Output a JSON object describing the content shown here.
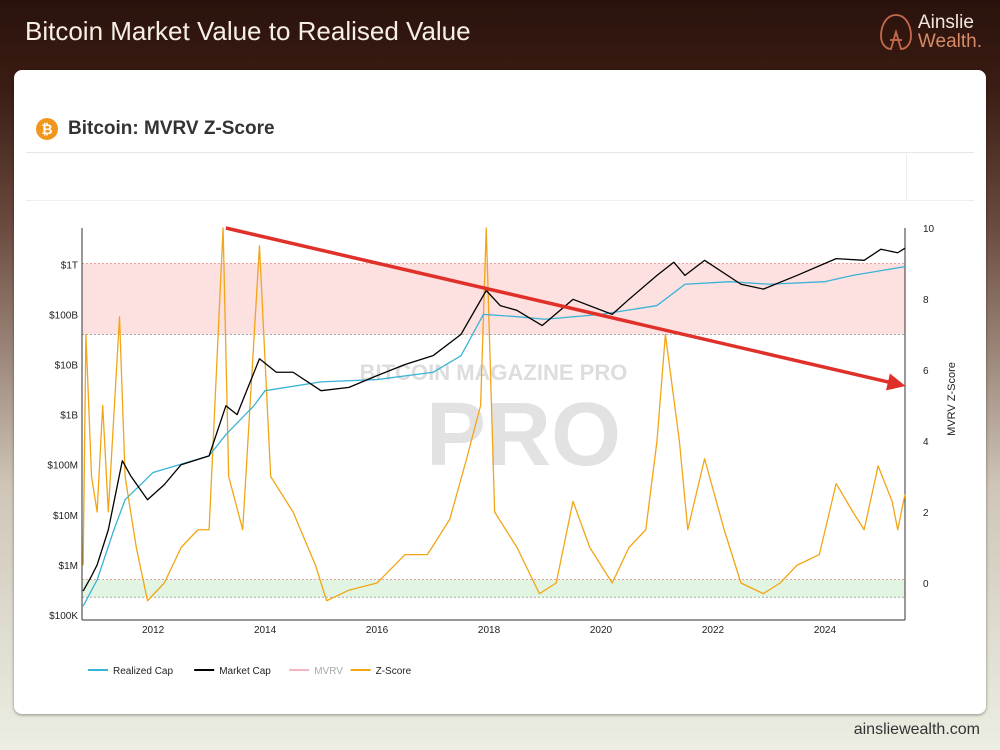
{
  "header": {
    "title": "Bitcoin Market Value to Realised Value",
    "logo_line1": "Ainslie",
    "logo_line2": "Wealth."
  },
  "card": {
    "title": "Bitcoin: MVRV Z-Score",
    "icon": "bitcoin-icon"
  },
  "footer": {
    "url": "ainsliewealth.com"
  },
  "watermark": "BITCOIN MAGAZINE PRO",
  "colors": {
    "realized": "#3ab3d6",
    "market": "#000000",
    "mvrv": "#f2b6c0",
    "zscore": "#f2a516",
    "arrow": "#e0302a",
    "red_band": "#fde0e0",
    "green_band": "#e2f5e2"
  },
  "chart_data": {
    "type": "line",
    "title": "Bitcoin: MVRV Z-Score",
    "xlim": [
      2010.73,
      2025.43
    ],
    "x_ticks": [
      "2012",
      "2014",
      "2016",
      "2018",
      "2020",
      "2022",
      "2024"
    ],
    "y_left": {
      "scale": "log",
      "lim": [
        100000,
        10000000000000
      ],
      "tick_values": [
        100000,
        1000000,
        10000000,
        100000000,
        1000000000,
        10000000000,
        100000000000,
        1000000000000
      ],
      "tick_labels": [
        "$100K",
        "$1M",
        "$10M",
        "$100M",
        "$1B",
        "$10B",
        "$100B",
        "$1T"
      ]
    },
    "y_right": {
      "label": "MVRV Z-Score",
      "lim": [
        -0.9,
        10
      ],
      "ticks": [
        "0",
        "2",
        "4",
        "6",
        "8",
        "10"
      ]
    },
    "bands": [
      {
        "zone": "red",
        "z_range": [
          7,
          9
        ]
      },
      {
        "zone": "green",
        "z_range": [
          -0.4,
          0.1
        ]
      }
    ],
    "annotation_arrow": {
      "from": [
        2013.3,
        10
      ],
      "to": [
        2025.3,
        5.6
      ]
    },
    "legend": {
      "placement": "bottom-left",
      "entries": [
        "Realized Cap",
        "Market Cap",
        "MVRV",
        "Z-Score"
      ]
    },
    "series": [
      {
        "name": "Realized Cap",
        "axis": "left",
        "points": [
          [
            2010.75,
            150000
          ],
          [
            2011.0,
            500000
          ],
          [
            2011.3,
            5000000
          ],
          [
            2011.5,
            20000000
          ],
          [
            2012.0,
            70000000
          ],
          [
            2013.0,
            150000000
          ],
          [
            2013.3,
            400000000
          ],
          [
            2013.8,
            1500000000
          ],
          [
            2014.0,
            3000000000
          ],
          [
            2015.0,
            4500000000
          ],
          [
            2016.0,
            5000000000
          ],
          [
            2017.0,
            7000000000
          ],
          [
            2017.5,
            15000000000
          ],
          [
            2017.9,
            100000000000
          ],
          [
            2018.5,
            90000000000
          ],
          [
            2019.0,
            80000000000
          ],
          [
            2020.0,
            100000000000
          ],
          [
            2021.0,
            150000000000
          ],
          [
            2021.5,
            400000000000
          ],
          [
            2022.3,
            450000000000
          ],
          [
            2023.0,
            400000000000
          ],
          [
            2024.0,
            450000000000
          ],
          [
            2024.5,
            600000000000
          ],
          [
            2025.43,
            900000000000
          ]
        ]
      },
      {
        "name": "Market Cap",
        "axis": "left",
        "points": [
          [
            2010.75,
            300000
          ],
          [
            2010.9,
            600000
          ],
          [
            2011.0,
            1000000
          ],
          [
            2011.2,
            5000000
          ],
          [
            2011.45,
            120000000
          ],
          [
            2011.6,
            60000000
          ],
          [
            2011.9,
            20000000
          ],
          [
            2012.2,
            40000000
          ],
          [
            2012.5,
            100000000
          ],
          [
            2013.0,
            150000000
          ],
          [
            2013.3,
            1500000000
          ],
          [
            2013.5,
            1000000000
          ],
          [
            2013.9,
            13000000000
          ],
          [
            2014.2,
            7000000000
          ],
          [
            2014.5,
            7000000000
          ],
          [
            2015.0,
            3000000000
          ],
          [
            2015.5,
            3500000000
          ],
          [
            2016.0,
            6000000000
          ],
          [
            2016.5,
            10000000000
          ],
          [
            2017.0,
            15000000000
          ],
          [
            2017.5,
            40000000000
          ],
          [
            2017.95,
            300000000000
          ],
          [
            2018.2,
            150000000000
          ],
          [
            2018.5,
            120000000000
          ],
          [
            2018.95,
            60000000000
          ],
          [
            2019.5,
            200000000000
          ],
          [
            2020.2,
            100000000000
          ],
          [
            2020.5,
            200000000000
          ],
          [
            2021.0,
            600000000000
          ],
          [
            2021.3,
            1100000000000
          ],
          [
            2021.5,
            600000000000
          ],
          [
            2021.85,
            1200000000000
          ],
          [
            2022.5,
            400000000000
          ],
          [
            2022.9,
            320000000000
          ],
          [
            2023.5,
            600000000000
          ],
          [
            2024.2,
            1300000000000
          ],
          [
            2024.7,
            1200000000000
          ],
          [
            2025.0,
            2000000000000
          ],
          [
            2025.3,
            1700000000000
          ],
          [
            2025.43,
            2100000000000
          ]
        ]
      },
      {
        "name": "Z-Score",
        "axis": "right",
        "points": [
          [
            2010.75,
            0.5
          ],
          [
            2010.8,
            7
          ],
          [
            2010.9,
            3
          ],
          [
            2011.0,
            2
          ],
          [
            2011.1,
            5
          ],
          [
            2011.2,
            2
          ],
          [
            2011.4,
            7.5
          ],
          [
            2011.5,
            3
          ],
          [
            2011.7,
            1
          ],
          [
            2011.9,
            -0.5
          ],
          [
            2012.2,
            0
          ],
          [
            2012.5,
            1
          ],
          [
            2012.8,
            1.5
          ],
          [
            2013.0,
            1.5
          ],
          [
            2013.25,
            10
          ],
          [
            2013.35,
            3
          ],
          [
            2013.6,
            1.5
          ],
          [
            2013.9,
            9.5
          ],
          [
            2014.1,
            3
          ],
          [
            2014.5,
            2
          ],
          [
            2014.9,
            0.5
          ],
          [
            2015.1,
            -0.5
          ],
          [
            2015.5,
            -0.2
          ],
          [
            2016.0,
            0
          ],
          [
            2016.5,
            0.8
          ],
          [
            2016.9,
            0.8
          ],
          [
            2017.3,
            1.8
          ],
          [
            2017.6,
            3.5
          ],
          [
            2017.85,
            5
          ],
          [
            2017.95,
            10
          ],
          [
            2018.1,
            2
          ],
          [
            2018.5,
            1
          ],
          [
            2018.9,
            -0.3
          ],
          [
            2019.2,
            0
          ],
          [
            2019.5,
            2.3
          ],
          [
            2019.8,
            1
          ],
          [
            2020.2,
            0
          ],
          [
            2020.5,
            1
          ],
          [
            2020.8,
            1.5
          ],
          [
            2021.0,
            4
          ],
          [
            2021.15,
            7
          ],
          [
            2021.4,
            4
          ],
          [
            2021.55,
            1.5
          ],
          [
            2021.85,
            3.5
          ],
          [
            2022.2,
            1.5
          ],
          [
            2022.5,
            0
          ],
          [
            2022.9,
            -0.3
          ],
          [
            2023.2,
            0
          ],
          [
            2023.5,
            0.5
          ],
          [
            2023.9,
            0.8
          ],
          [
            2024.2,
            2.8
          ],
          [
            2024.5,
            2
          ],
          [
            2024.7,
            1.5
          ],
          [
            2024.95,
            3.3
          ],
          [
            2025.2,
            2.3
          ],
          [
            2025.3,
            1.5
          ],
          [
            2025.43,
            2.5
          ]
        ]
      }
    ]
  }
}
